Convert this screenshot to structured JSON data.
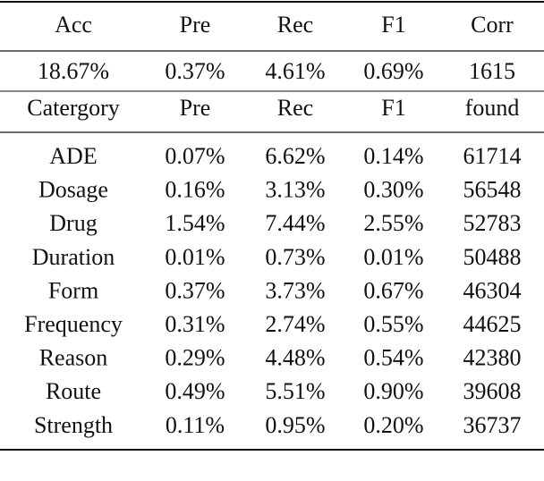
{
  "table": {
    "summary_header": [
      "Acc",
      "Pre",
      "Rec",
      "F1",
      "Corr"
    ],
    "summary_row": [
      "18.67%",
      "0.37%",
      "4.61%",
      "0.69%",
      "1615"
    ],
    "header": [
      "Catergory",
      "Pre",
      "Rec",
      "F1",
      "found"
    ],
    "rows": [
      [
        "ADE",
        "0.07%",
        "6.62%",
        "0.14%",
        "61714"
      ],
      [
        "Dosage",
        "0.16%",
        "3.13%",
        "0.30%",
        "56548"
      ],
      [
        "Drug",
        "1.54%",
        "7.44%",
        "2.55%",
        "52783"
      ],
      [
        "Duration",
        "0.01%",
        "0.73%",
        "0.01%",
        "50488"
      ],
      [
        "Form",
        "0.37%",
        "3.73%",
        "0.67%",
        "46304"
      ],
      [
        "Frequency",
        "0.31%",
        "2.74%",
        "0.55%",
        "44625"
      ],
      [
        "Reason",
        "0.29%",
        "4.48%",
        "0.54%",
        "42380"
      ],
      [
        "Route",
        "0.49%",
        "5.51%",
        "0.90%",
        "39608"
      ],
      [
        "Strength",
        "0.11%",
        "0.95%",
        "0.20%",
        "36737"
      ]
    ]
  }
}
